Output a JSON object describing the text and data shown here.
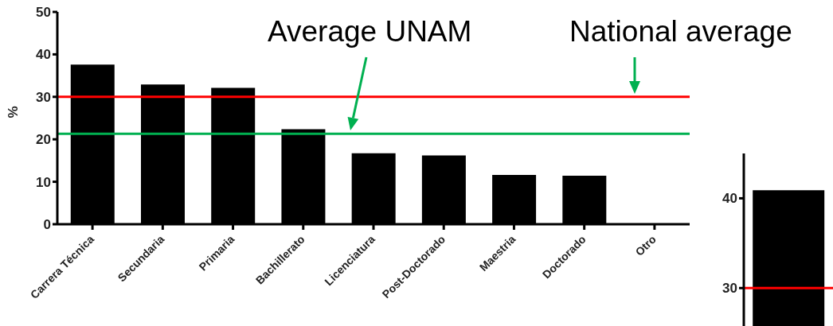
{
  "chart_data": [
    {
      "type": "bar",
      "ylabel": "%",
      "categories": [
        "Carrera Técnica",
        "Secundaria",
        "Primaria",
        "Bachillerato",
        "Licenciatura",
        "Post-Doctorado",
        "Maestria",
        "Doctorado",
        "Otro"
      ],
      "values": [
        37.6,
        32.9,
        32.1,
        22.4,
        16.7,
        16.2,
        11.6,
        11.4,
        0
      ],
      "color": "#000000",
      "ylim": [
        0,
        50
      ],
      "yticks": [
        0,
        10,
        20,
        30,
        40,
        50
      ],
      "grid": false,
      "legend": false,
      "ref_lines": [
        {
          "axis": "y",
          "value": 30,
          "label": "National average",
          "color": "#ff0000"
        },
        {
          "axis": "y",
          "value": 21.3,
          "label": "Average UNAM",
          "color": "#00b050"
        }
      ]
    },
    {
      "type": "bar",
      "categories": [
        null
      ],
      "values": [
        40.9
      ],
      "color": "#000000",
      "ylim": [
        24,
        45
      ],
      "yticks": [
        30,
        40
      ],
      "grid": false,
      "legend": false,
      "tick_labels": "y",
      "ref_lines": [
        {
          "axis": "y",
          "value": 30,
          "color": "#ff0000"
        }
      ]
    }
  ]
}
